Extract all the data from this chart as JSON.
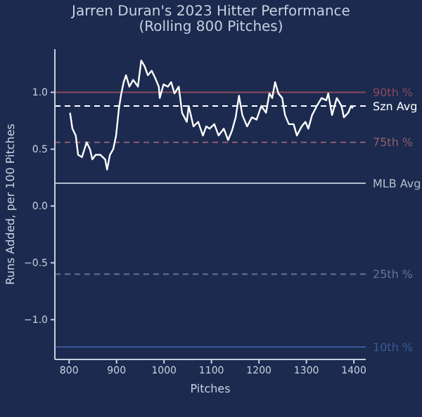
{
  "chart_data": {
    "type": "line",
    "title": "Jarren Duran's 2023 Hitter Performance",
    "subtitle": "(Rolling 800 Pitches)",
    "xlabel": "Pitches",
    "ylabel": "Runs Added, per 100 Pitches",
    "xlim": [
      770,
      1425
    ],
    "xticks": [
      800,
      900,
      1000,
      1100,
      1200,
      1300,
      1400
    ],
    "ylim": [
      -1.35,
      1.38
    ],
    "yticks": [
      {
        "value": -1,
        "label": "−1.0"
      },
      {
        "value": -0.5,
        "label": "−0.5"
      },
      {
        "value": 0,
        "label": "0.0"
      },
      {
        "value": 0.5,
        "label": "0.5"
      },
      {
        "value": 1,
        "label": "1.0"
      }
    ],
    "grid": false,
    "legend": false,
    "marker": "none",
    "line_style": "solid",
    "series": [
      {
        "color": "#ffffff",
        "x": [
          802,
          807,
          814,
          819,
          827,
          837,
          844,
          849,
          856,
          866,
          876,
          880,
          886,
          893,
          899,
          905,
          910,
          915,
          920,
          927,
          935,
          945,
          952,
          959,
          966,
          974,
          981,
          989,
          991,
          999,
          1008,
          1015,
          1022,
          1031,
          1038,
          1048,
          1052,
          1062,
          1072,
          1082,
          1089,
          1096,
          1106,
          1115,
          1126,
          1135,
          1143,
          1151,
          1158,
          1165,
          1175,
          1185,
          1195,
          1205,
          1215,
          1222,
          1228,
          1234,
          1241,
          1249,
          1255,
          1263,
          1273,
          1280,
          1290,
          1298,
          1304,
          1312,
          1322,
          1332,
          1342,
          1346,
          1354,
          1364,
          1374,
          1379,
          1388,
          1394,
          1398
        ],
        "values": [
          0.82,
          0.68,
          0.62,
          0.45,
          0.43,
          0.56,
          0.5,
          0.41,
          0.45,
          0.45,
          0.41,
          0.32,
          0.45,
          0.5,
          0.62,
          0.86,
          0.99,
          1.09,
          1.15,
          1.05,
          1.11,
          1.05,
          1.28,
          1.23,
          1.15,
          1.19,
          1.13,
          1.05,
          0.95,
          1.07,
          1.05,
          1.09,
          0.99,
          1.05,
          0.82,
          0.74,
          0.88,
          0.7,
          0.74,
          0.62,
          0.7,
          0.68,
          0.72,
          0.62,
          0.68,
          0.58,
          0.66,
          0.78,
          0.97,
          0.8,
          0.7,
          0.78,
          0.76,
          0.88,
          0.82,
          0.99,
          0.95,
          1.09,
          0.99,
          0.95,
          0.8,
          0.72,
          0.72,
          0.62,
          0.7,
          0.74,
          0.68,
          0.8,
          0.88,
          0.95,
          0.93,
          0.99,
          0.8,
          0.95,
          0.88,
          0.78,
          0.82,
          0.88,
          0.86
        ]
      }
    ],
    "ref_lines": [
      {
        "axis": "y",
        "value": 1.0,
        "label": "90th %",
        "color": "#8a4a5c",
        "line_style": "solid"
      },
      {
        "axis": "y",
        "value": 0.88,
        "label": "Szn Avg",
        "color": "#ffffff",
        "line_style": "dashed"
      },
      {
        "axis": "y",
        "value": 0.56,
        "label": "75th %",
        "color": "#8e5e70",
        "line_style": "dashed"
      },
      {
        "axis": "y",
        "value": 0.2,
        "label": "MLB Avg",
        "color": "#b4bccc",
        "line_style": "solid"
      },
      {
        "axis": "y",
        "value": -0.6,
        "label": "25th %",
        "color": "#64739a",
        "line_style": "dashed"
      },
      {
        "axis": "y",
        "value": -1.24,
        "label": "10th %",
        "color": "#3d5a9a",
        "line_style": "solid"
      }
    ]
  }
}
